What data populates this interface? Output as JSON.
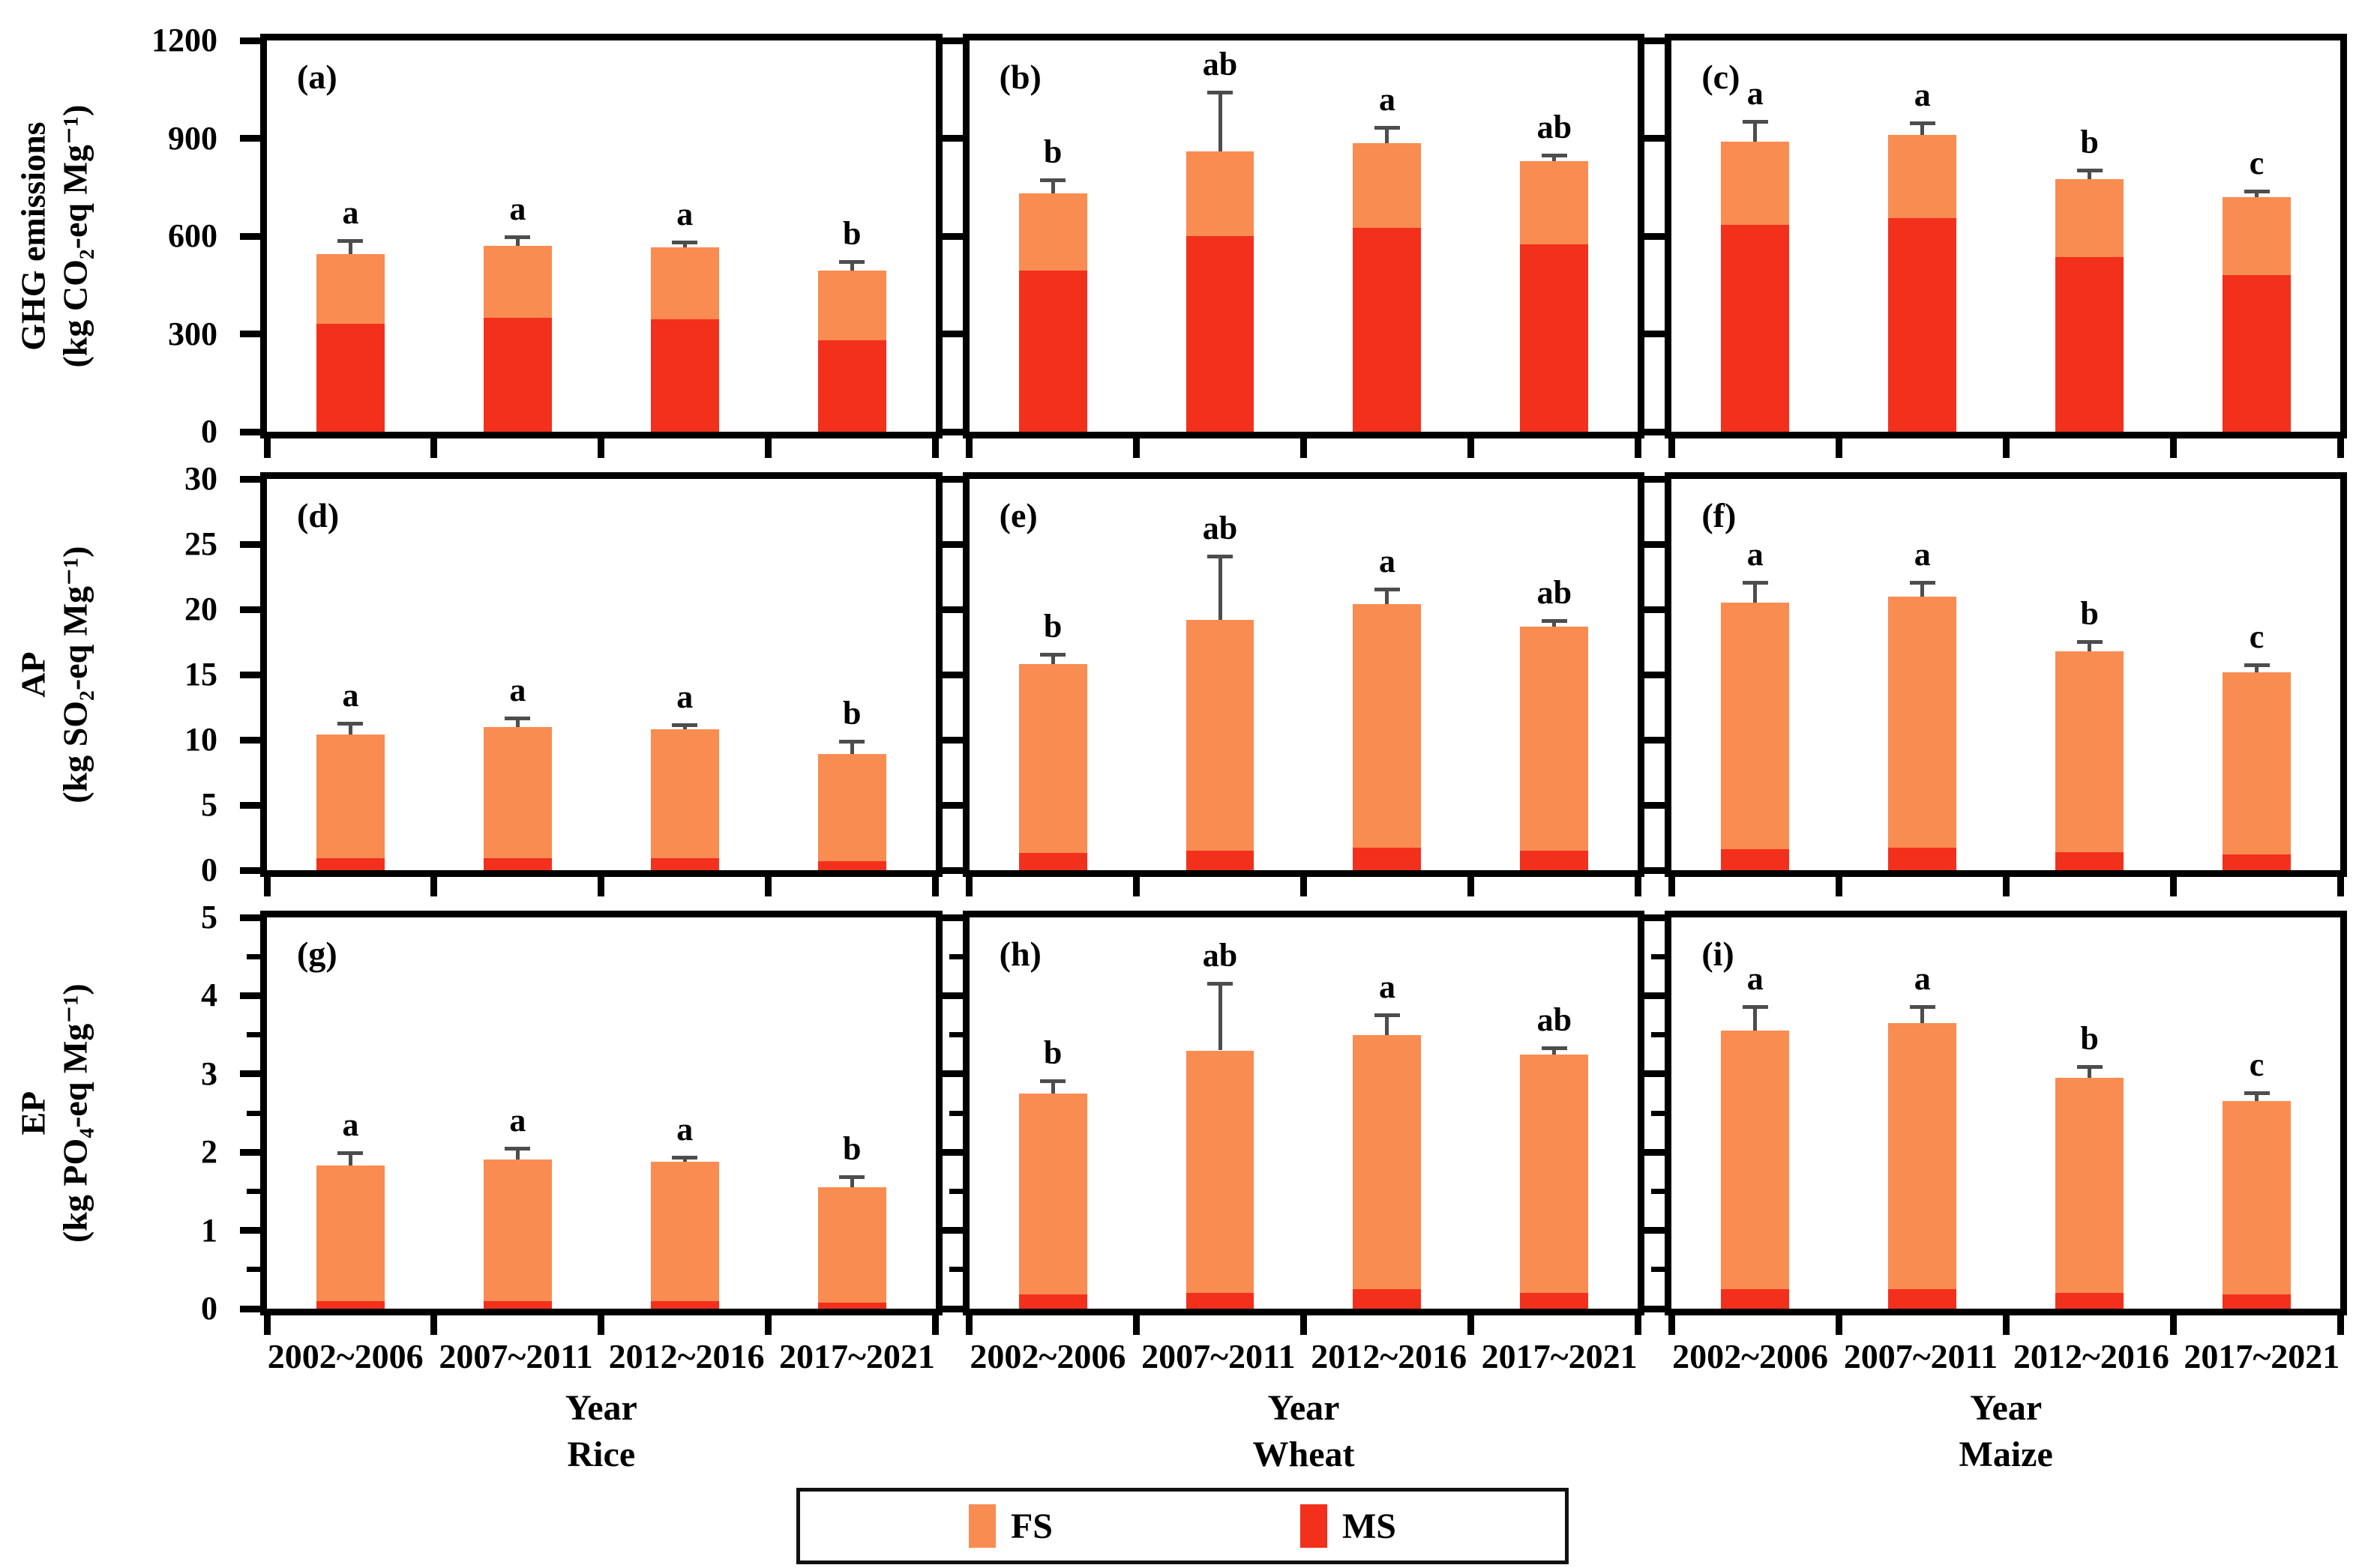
{
  "figure": {
    "background": "#ffffff",
    "colors": {
      "fs": "#F98C51",
      "ms": "#F3301C",
      "error_bar": "#4d4d4d",
      "axis": "#000000"
    },
    "xlabel": "Year",
    "columns": [
      "Rice",
      "Wheat",
      "Maize"
    ],
    "legend": {
      "position": "bottom-center",
      "items": [
        {
          "label": "FS",
          "color_key": "fs"
        },
        {
          "label": "MS",
          "color_key": "ms"
        }
      ]
    }
  },
  "chart_data": {
    "type": "bar",
    "stacked": true,
    "grid": false,
    "categories": [
      "2002~2006",
      "2007~2011",
      "2012~2016",
      "2017~2021"
    ],
    "series_names": [
      "MS",
      "FS"
    ],
    "note": "totals = full stacked bar height (MS+FS); ms = red bottom segment; err_top = top of error whisker; letters = significance labels",
    "rows": [
      {
        "metric": "GHG emissions",
        "ylabel_line1": "GHG emissions",
        "ylabel_line2": "(kg CO₂-eq Mg⁻¹)",
        "ylim": [
          0,
          1200
        ],
        "yticks": [
          0,
          300,
          600,
          900,
          1200
        ],
        "minor_step": null,
        "panels": [
          {
            "label": "(a)",
            "crop": "Rice",
            "totals": [
              545,
              570,
              565,
              495
            ],
            "ms": [
              330,
              350,
              345,
              280
            ],
            "err_top": [
              585,
              595,
              580,
              520
            ],
            "letters": [
              "a",
              "a",
              "a",
              "b"
            ]
          },
          {
            "label": "(b)",
            "crop": "Wheat",
            "totals": [
              730,
              860,
              885,
              830
            ],
            "ms": [
              495,
              600,
              625,
              575
            ],
            "err_top": [
              770,
              1040,
              930,
              845
            ],
            "letters": [
              "b",
              "ab",
              "a",
              "ab"
            ]
          },
          {
            "label": "(c)",
            "crop": "Maize",
            "totals": [
              890,
              910,
              775,
              720
            ],
            "ms": [
              635,
              655,
              535,
              480
            ],
            "err_top": [
              950,
              945,
              800,
              735
            ],
            "letters": [
              "a",
              "a",
              "b",
              "c"
            ]
          }
        ]
      },
      {
        "metric": "AP",
        "ylabel_line1": "AP",
        "ylabel_line2": "(kg SO₂-eq Mg⁻¹)",
        "ylim": [
          0,
          30
        ],
        "yticks": [
          0,
          5,
          10,
          15,
          20,
          25,
          30
        ],
        "minor_step": null,
        "panels": [
          {
            "label": "(d)",
            "crop": "Rice",
            "totals": [
              10.4,
              11.0,
              10.8,
              8.9
            ],
            "ms": [
              0.9,
              0.9,
              0.9,
              0.7
            ],
            "err_top": [
              11.2,
              11.6,
              11.1,
              9.8
            ],
            "letters": [
              "a",
              "a",
              "a",
              "b"
            ]
          },
          {
            "label": "(e)",
            "crop": "Wheat",
            "totals": [
              15.8,
              19.2,
              20.4,
              18.7
            ],
            "ms": [
              1.3,
              1.5,
              1.7,
              1.5
            ],
            "err_top": [
              16.5,
              24.0,
              21.5,
              19.1
            ],
            "letters": [
              "b",
              "ab",
              "a",
              "ab"
            ]
          },
          {
            "label": "(f)",
            "crop": "Maize",
            "totals": [
              20.5,
              21.0,
              16.8,
              15.2
            ],
            "ms": [
              1.6,
              1.7,
              1.4,
              1.2
            ],
            "err_top": [
              22.0,
              22.0,
              17.5,
              15.7
            ],
            "letters": [
              "a",
              "a",
              "b",
              "c"
            ]
          }
        ]
      },
      {
        "metric": "EP",
        "ylabel_line1": "EP",
        "ylabel_line2": "(kg PO₄-eq Mg⁻¹)",
        "ylim": [
          0,
          5
        ],
        "yticks": [
          0,
          1,
          2,
          3,
          4,
          5
        ],
        "minor_step": 0.5,
        "panels": [
          {
            "label": "(g)",
            "crop": "Rice",
            "totals": [
              1.83,
              1.91,
              1.88,
              1.55
            ],
            "ms": [
              0.1,
              0.1,
              0.1,
              0.08
            ],
            "err_top": [
              1.98,
              2.04,
              1.93,
              1.68
            ],
            "letters": [
              "a",
              "a",
              "a",
              "b"
            ]
          },
          {
            "label": "(h)",
            "crop": "Wheat",
            "totals": [
              2.75,
              3.3,
              3.5,
              3.25
            ],
            "ms": [
              0.18,
              0.2,
              0.25,
              0.2
            ],
            "err_top": [
              2.9,
              4.15,
              3.75,
              3.32
            ],
            "letters": [
              "b",
              "ab",
              "a",
              "ab"
            ]
          },
          {
            "label": "(i)",
            "crop": "Maize",
            "totals": [
              3.55,
              3.65,
              2.95,
              2.65
            ],
            "ms": [
              0.25,
              0.25,
              0.2,
              0.18
            ],
            "err_top": [
              3.85,
              3.85,
              3.08,
              2.75
            ],
            "letters": [
              "a",
              "a",
              "b",
              "c"
            ]
          }
        ]
      }
    ]
  }
}
